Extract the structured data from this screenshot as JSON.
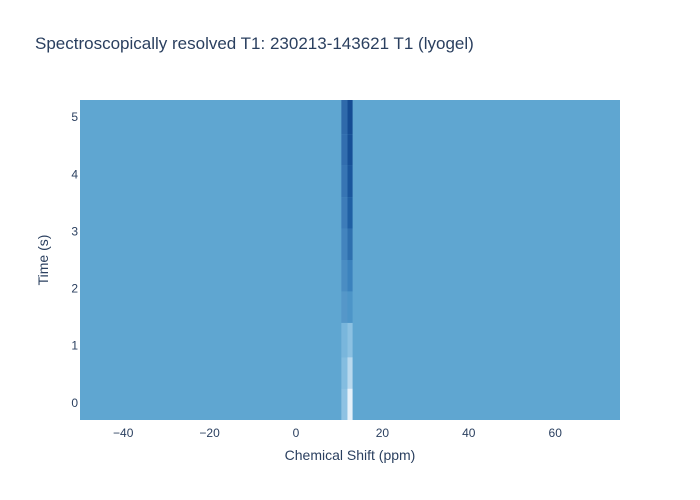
{
  "chart_data": {
    "type": "heatmap",
    "title": "Spectroscopically resolved T1: 230213-143621 T1 (lyogel)",
    "xlabel": "Chemical Shift (ppm)",
    "ylabel": "Time (s)",
    "xlim": [
      -50,
      75
    ],
    "ylim": [
      -0.3,
      5.3
    ],
    "x_ticks": [
      -40,
      -20,
      0,
      20,
      40,
      60
    ],
    "x_tick_labels": [
      "−40",
      "−20",
      "0",
      "20",
      "40",
      "60"
    ],
    "y_ticks": [
      0,
      1,
      2,
      3,
      4,
      5
    ],
    "y_tick_labels": [
      "0",
      "1",
      "2",
      "3",
      "4",
      "5"
    ],
    "time_rows": [
      {
        "y0": -0.3,
        "y1": 0.25
      },
      {
        "y0": 0.25,
        "y1": 0.8
      },
      {
        "y0": 0.8,
        "y1": 1.4
      },
      {
        "y0": 1.4,
        "y1": 1.95
      },
      {
        "y0": 1.95,
        "y1": 2.5
      },
      {
        "y0": 2.5,
        "y1": 3.05
      },
      {
        "y0": 3.05,
        "y1": 3.6
      },
      {
        "y0": 3.6,
        "y1": 4.15
      },
      {
        "y0": 4.15,
        "y1": 4.7
      },
      {
        "y0": 4.7,
        "y1": 5.3
      }
    ],
    "background_color": "#5fa6d1",
    "peak": {
      "center_ppm": 12.5,
      "width_ppm": 1.2,
      "colors_by_row": [
        "#e6f1fa",
        "#b9d9ee",
        "#8cc1e2",
        "#4d95c8",
        "#3b82bd",
        "#2e6fae",
        "#1f5fa3",
        "#1a569c",
        "#164f96",
        "#154c93"
      ]
    },
    "shoulder": {
      "center_ppm": 11.2,
      "width_ppm": 1.4,
      "colors_by_row": [
        "#8ec2e3",
        "#84bde0",
        "#79b6dc",
        "#5597c9",
        "#4a8dc3",
        "#4384be",
        "#3d7cb9",
        "#3775b4",
        "#326eaf",
        "#2f6aab"
      ]
    }
  }
}
